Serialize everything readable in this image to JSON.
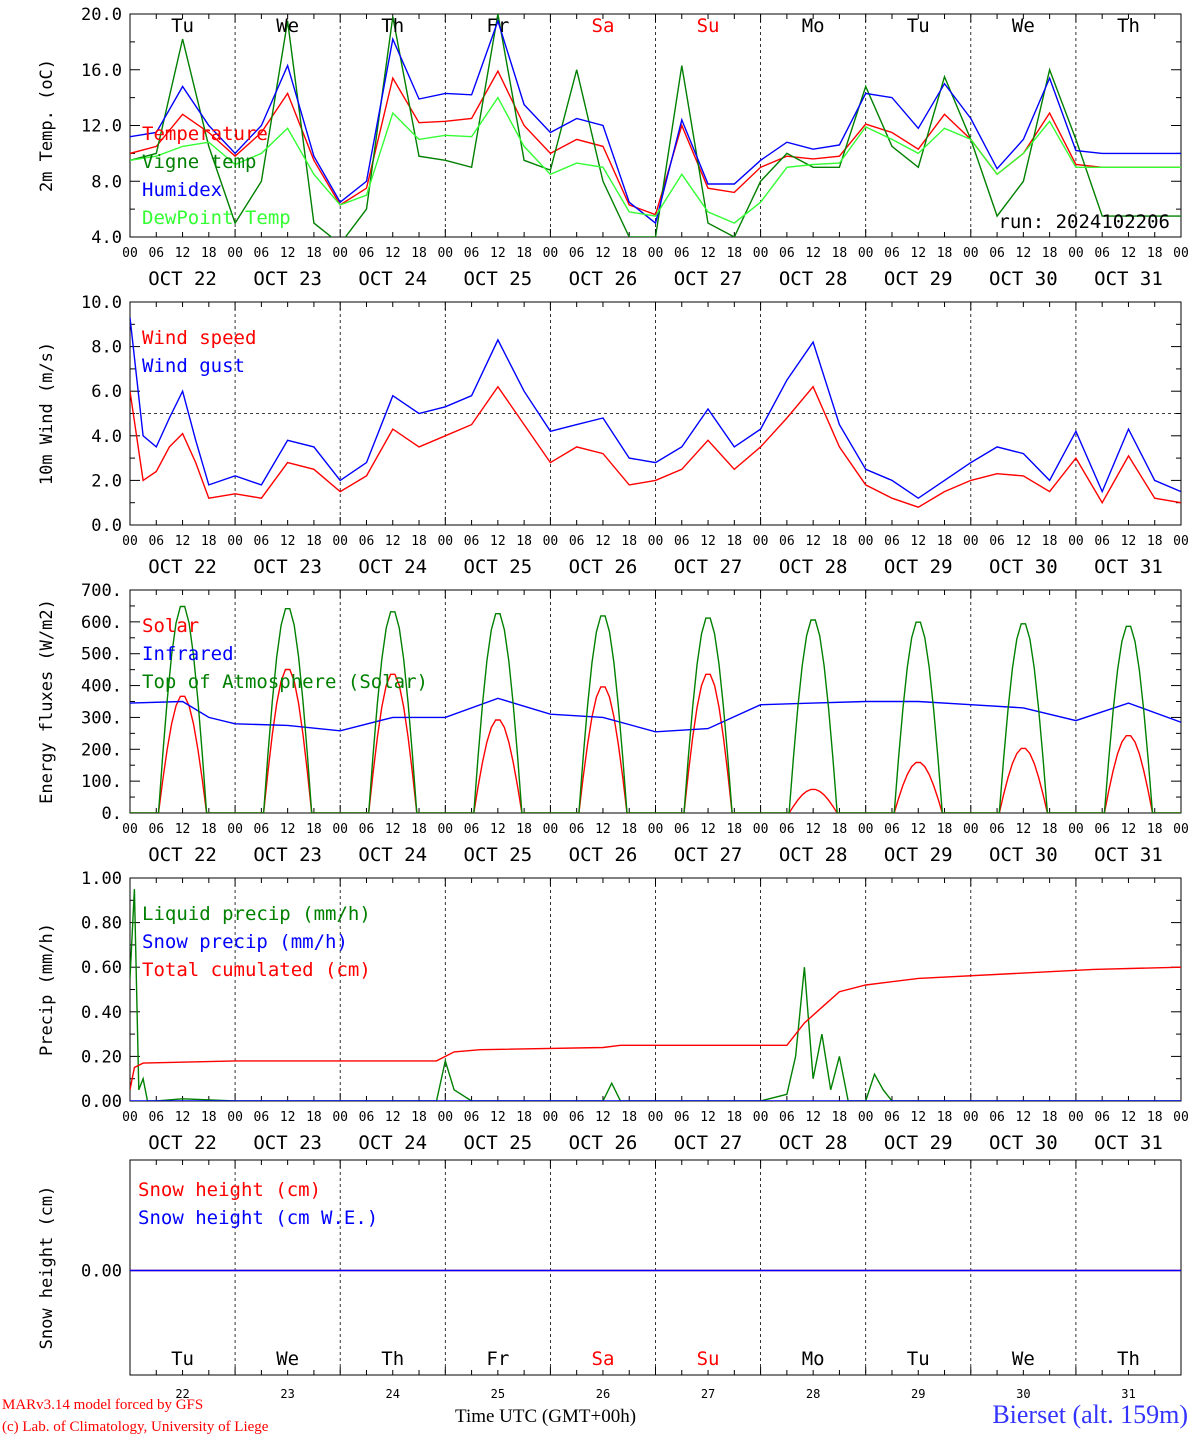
{
  "days": [
    "Tu",
    "We",
    "Th",
    "Fr",
    "Sa",
    "Su",
    "Mo",
    "Tu",
    "We",
    "Th"
  ],
  "weekend_days": [
    4,
    5
  ],
  "weekend_color": "#ff0000",
  "dates": [
    "OCT 22",
    "OCT 23",
    "OCT 24",
    "OCT 25",
    "OCT 26",
    "OCT 27",
    "OCT 28",
    "OCT 29",
    "OCT 30",
    "OCT 31"
  ],
  "date_numbers": [
    "22",
    "23",
    "24",
    "25",
    "26",
    "27",
    "28",
    "29",
    "30",
    "31"
  ],
  "hour_ticks": [
    "00",
    "06",
    "12",
    "18"
  ],
  "final_hour_tick": "00",
  "run_label": "run: 2024102206",
  "x_axis_title": "Time UTC (GMT+00h)",
  "station": "Bierset (alt. 159m)",
  "credit_line1": "MARv3.14 model forced by GFS",
  "credit_line2": "(c) Lab. of Climatology, University of Liege",
  "chart_data": [
    {
      "type": "line",
      "ylabel": "2m Temp. (oC)",
      "ylim": [
        4.0,
        20.0
      ],
      "yticks": [
        "4.0",
        "8.0",
        "12.0",
        "16.0",
        "20.0"
      ],
      "ytick_values": [
        4,
        8,
        12,
        16,
        20
      ],
      "series": [
        {
          "name": "Temperature",
          "color": "#ff0000",
          "x_hours": [
            0,
            6,
            12,
            18,
            24,
            30,
            36,
            42,
            48,
            54,
            60,
            66,
            72,
            78,
            84,
            90,
            96,
            102,
            108,
            114,
            120,
            126,
            132,
            138,
            144,
            150,
            156,
            162,
            168,
            174,
            180,
            186,
            192,
            198,
            204,
            210,
            216,
            222,
            228,
            234,
            240
          ],
          "values": [
            10.0,
            10.5,
            12.8,
            11.5,
            9.8,
            11.5,
            14.3,
            9.5,
            6.3,
            7.5,
            15.4,
            12.2,
            12.3,
            12.5,
            15.9,
            12.0,
            10.0,
            11.0,
            10.5,
            6.3,
            5.6,
            12.0,
            7.5,
            7.2,
            9.0,
            9.8,
            9.6,
            9.8,
            12.1,
            11.5,
            10.3,
            12.8,
            11.0,
            8.5,
            10.0,
            12.9,
            9.2,
            9.0,
            9.0,
            9.0,
            9.0
          ]
        },
        {
          "name": "Vigne temp",
          "color": "#008000",
          "x_hours": [
            0,
            6,
            12,
            18,
            24,
            30,
            36,
            42,
            48,
            54,
            60,
            66,
            72,
            78,
            84,
            90,
            96,
            102,
            108,
            114,
            120,
            126,
            132,
            138,
            144,
            150,
            156,
            162,
            168,
            174,
            180,
            186,
            192,
            198,
            204,
            210,
            216,
            222,
            228,
            234,
            240
          ],
          "values": [
            9.5,
            10.0,
            18.2,
            10.5,
            5.0,
            8.0,
            19.5,
            5.0,
            3.5,
            6.0,
            19.8,
            9.8,
            9.5,
            9.0,
            20.0,
            9.5,
            8.8,
            16.0,
            8.0,
            4.0,
            4.0,
            16.3,
            5.0,
            4.0,
            8.0,
            10.0,
            9.0,
            9.0,
            14.8,
            10.5,
            9.0,
            15.5,
            11.0,
            5.5,
            8.0,
            16.0,
            11.0,
            5.5,
            5.5,
            5.5,
            5.5
          ]
        },
        {
          "name": "Humidex",
          "color": "#0000ff",
          "x_hours": [
            0,
            6,
            12,
            18,
            24,
            30,
            36,
            42,
            48,
            54,
            60,
            66,
            72,
            78,
            84,
            90,
            96,
            102,
            108,
            114,
            120,
            126,
            132,
            138,
            144,
            150,
            156,
            162,
            168,
            174,
            180,
            186,
            192,
            198,
            204,
            210,
            216,
            222,
            228,
            234,
            240
          ],
          "values": [
            11.2,
            11.5,
            14.8,
            12.0,
            10.0,
            12.0,
            16.3,
            9.8,
            6.5,
            8.0,
            18.2,
            13.9,
            14.3,
            14.2,
            19.5,
            13.5,
            11.5,
            12.5,
            12.0,
            6.5,
            5.0,
            12.4,
            7.8,
            7.8,
            9.5,
            10.8,
            10.3,
            10.6,
            14.3,
            14.0,
            11.8,
            15.0,
            12.5,
            8.9,
            11.0,
            15.4,
            10.2,
            10.0,
            10.0,
            10.0,
            10.0
          ]
        },
        {
          "name": "DewPoint Temp",
          "color": "#33ff33",
          "x_hours": [
            0,
            6,
            12,
            18,
            24,
            30,
            36,
            42,
            48,
            54,
            60,
            66,
            72,
            78,
            84,
            90,
            96,
            102,
            108,
            114,
            120,
            126,
            132,
            138,
            144,
            150,
            156,
            162,
            168,
            174,
            180,
            186,
            192,
            198,
            204,
            210,
            216,
            222,
            228,
            234,
            240
          ],
          "values": [
            9.5,
            9.8,
            10.5,
            10.8,
            9.2,
            10.0,
            11.8,
            8.5,
            6.3,
            7.0,
            12.9,
            11.0,
            11.3,
            11.2,
            14.0,
            10.5,
            8.5,
            9.3,
            9.0,
            5.8,
            5.5,
            8.5,
            5.8,
            5.0,
            6.5,
            9.0,
            9.2,
            9.3,
            11.9,
            11.0,
            10.0,
            11.8,
            11.0,
            8.5,
            10.0,
            12.3,
            9.0,
            9.0,
            9.0,
            9.0,
            9.0
          ]
        }
      ]
    },
    {
      "type": "line",
      "ylabel": "10m Wind (m/s)",
      "ylim": [
        0.0,
        10.0
      ],
      "yticks": [
        "0.0",
        "2.0",
        "4.0",
        "6.0",
        "8.0",
        "10.0"
      ],
      "ytick_values": [
        0,
        2,
        4,
        6,
        8,
        10
      ],
      "reference_line": 5.0,
      "series": [
        {
          "name": "Wind speed",
          "color": "#ff0000",
          "x_hours": [
            0,
            3,
            6,
            9,
            12,
            15,
            18,
            24,
            30,
            36,
            42,
            48,
            54,
            60,
            66,
            72,
            78,
            84,
            90,
            96,
            102,
            108,
            114,
            120,
            126,
            132,
            138,
            144,
            150,
            156,
            162,
            168,
            174,
            180,
            186,
            192,
            198,
            204,
            210,
            216,
            222,
            228,
            234,
            240
          ],
          "values": [
            6.0,
            2.0,
            2.4,
            3.5,
            4.1,
            2.8,
            1.2,
            1.4,
            1.2,
            2.8,
            2.5,
            1.5,
            2.2,
            4.3,
            3.5,
            4.0,
            4.5,
            6.2,
            4.5,
            2.8,
            3.5,
            3.2,
            1.8,
            2.0,
            2.5,
            3.8,
            2.5,
            3.5,
            4.8,
            6.2,
            3.5,
            1.8,
            1.2,
            0.8,
            1.5,
            2.0,
            2.3,
            2.2,
            1.5,
            3.0,
            1.0,
            3.1,
            1.2,
            1.0
          ]
        },
        {
          "name": "Wind gust",
          "color": "#0000ff",
          "x_hours": [
            0,
            3,
            6,
            9,
            12,
            15,
            18,
            24,
            30,
            36,
            42,
            48,
            54,
            60,
            66,
            72,
            78,
            84,
            90,
            96,
            102,
            108,
            114,
            120,
            126,
            132,
            138,
            144,
            150,
            156,
            162,
            168,
            174,
            180,
            186,
            192,
            198,
            204,
            210,
            216,
            222,
            228,
            234,
            240
          ],
          "values": [
            9.3,
            4.0,
            3.5,
            4.8,
            6.0,
            3.8,
            1.8,
            2.2,
            1.8,
            3.8,
            3.5,
            2.0,
            2.8,
            5.8,
            5.0,
            5.3,
            5.8,
            8.3,
            6.0,
            4.2,
            4.5,
            4.8,
            3.0,
            2.8,
            3.5,
            5.2,
            3.5,
            4.3,
            6.5,
            8.2,
            4.5,
            2.5,
            2.0,
            1.2,
            2.0,
            2.8,
            3.5,
            3.2,
            2.0,
            4.2,
            1.5,
            4.3,
            2.0,
            1.5
          ]
        }
      ]
    },
    {
      "type": "line",
      "ylabel": "Energy fluxes (W/m2)",
      "ylim": [
        0,
        700
      ],
      "yticks": [
        "0.",
        "100.",
        "200.",
        "300.",
        "400.",
        "500.",
        "600.",
        "700."
      ],
      "ytick_values": [
        0,
        100,
        200,
        300,
        400,
        500,
        600,
        700
      ],
      "series": [
        {
          "name": "Solar",
          "color": "#ff0000",
          "daily_peaks": [
            370,
            455,
            440,
            295,
            400,
            440,
            75,
            160,
            205,
            245
          ]
        },
        {
          "name": "Infrared",
          "color": "#0000ff",
          "x_hours": [
            0,
            12,
            18,
            24,
            36,
            48,
            60,
            72,
            84,
            96,
            108,
            120,
            132,
            144,
            156,
            168,
            180,
            192,
            204,
            216,
            228,
            240
          ],
          "values": [
            345,
            350,
            300,
            280,
            275,
            258,
            300,
            300,
            360,
            310,
            300,
            255,
            265,
            340,
            345,
            350,
            350,
            340,
            330,
            290,
            345,
            285
          ]
        },
        {
          "name": "Top of Atmosphere (Solar)",
          "color": "#008000",
          "daily_peaks": [
            655,
            648,
            638,
            632,
            625,
            618,
            612,
            605,
            600,
            592
          ]
        }
      ]
    },
    {
      "type": "line",
      "ylabel": "Precip (mm/h)",
      "ylim": [
        0.0,
        1.0
      ],
      "yticks": [
        "0.00",
        "0.20",
        "0.40",
        "0.60",
        "0.80",
        "1.00"
      ],
      "ytick_values": [
        0,
        0.2,
        0.4,
        0.6,
        0.8,
        1.0
      ],
      "series": [
        {
          "name": "Liquid precip (mm/h)",
          "color": "#008000",
          "x_hours": [
            0,
            1,
            2,
            3,
            4,
            6,
            12,
            24,
            48,
            70,
            72,
            74,
            78,
            96,
            108,
            110,
            112,
            144,
            150,
            152,
            154,
            156,
            158,
            160,
            162,
            164,
            168,
            170,
            172,
            174,
            180,
            240
          ],
          "values": [
            0.55,
            0.95,
            0.05,
            0.1,
            0.0,
            0.0,
            0.01,
            0.0,
            0.0,
            0.0,
            0.18,
            0.05,
            0.0,
            0.0,
            0.0,
            0.08,
            0.0,
            0.0,
            0.03,
            0.2,
            0.6,
            0.1,
            0.3,
            0.05,
            0.2,
            0.0,
            0.0,
            0.12,
            0.05,
            0.0,
            0.0,
            0.0
          ]
        },
        {
          "name": "Snow precip (mm/h)",
          "color": "#0000ff",
          "x_hours": [
            0,
            240
          ],
          "values": [
            0.0,
            0.0
          ]
        },
        {
          "name": "Total cumulated (cm)",
          "color": "#ff0000",
          "x_hours": [
            0,
            1,
            3,
            24,
            48,
            70,
            74,
            80,
            108,
            112,
            150,
            154,
            158,
            162,
            168,
            180,
            210,
            220,
            240
          ],
          "values": [
            0.05,
            0.15,
            0.17,
            0.18,
            0.18,
            0.18,
            0.22,
            0.23,
            0.24,
            0.25,
            0.25,
            0.35,
            0.42,
            0.49,
            0.52,
            0.55,
            0.58,
            0.59,
            0.6
          ]
        }
      ]
    },
    {
      "type": "line",
      "ylabel": "Snow height (cm)",
      "yticks": [
        "0.00"
      ],
      "series": [
        {
          "name": "Snow height (cm)",
          "color": "#ff0000",
          "x_hours": [
            0,
            240
          ],
          "values": [
            0.0,
            0.0
          ]
        },
        {
          "name": "Snow height (cm W.E.)",
          "color": "#0000ff",
          "x_hours": [
            0,
            240
          ],
          "values": [
            0.0,
            0.0
          ]
        }
      ]
    }
  ]
}
